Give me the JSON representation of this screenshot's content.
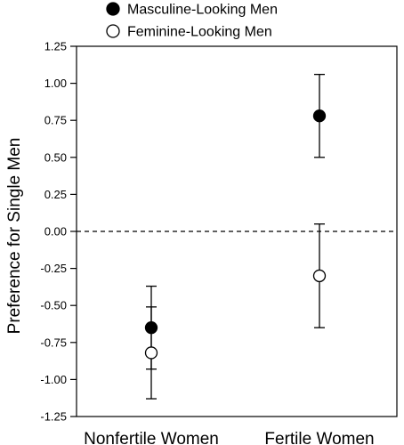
{
  "chart_data": {
    "type": "scatter",
    "title": "",
    "xlabel": "",
    "ylabel": "Preference for Single Men",
    "categories": [
      "Nonfertile Women",
      "Fertile Women"
    ],
    "ylim": [
      -1.25,
      1.25
    ],
    "yticks": [
      "1.25",
      "1.00",
      "0.75",
      "0.50",
      "0.25",
      "0.00",
      "-0.25",
      "-0.50",
      "-0.75",
      "-1.00",
      "-1.25"
    ],
    "reference_line": {
      "y": 0,
      "style": "dashed"
    },
    "legend": {
      "placement": "top"
    },
    "series": [
      {
        "name": "Masculine-Looking Men",
        "marker": "filled-circle",
        "color": "#000000",
        "values": [
          -0.65,
          0.78
        ],
        "error_low": [
          -0.93,
          0.5
        ],
        "error_high": [
          -0.37,
          1.06
        ]
      },
      {
        "name": "Feminine-Looking Men",
        "marker": "open-circle",
        "color": "#ffffff",
        "values": [
          -0.82,
          -0.3
        ],
        "error_low": [
          -1.13,
          -0.65
        ],
        "error_high": [
          -0.51,
          0.05
        ]
      }
    ]
  }
}
